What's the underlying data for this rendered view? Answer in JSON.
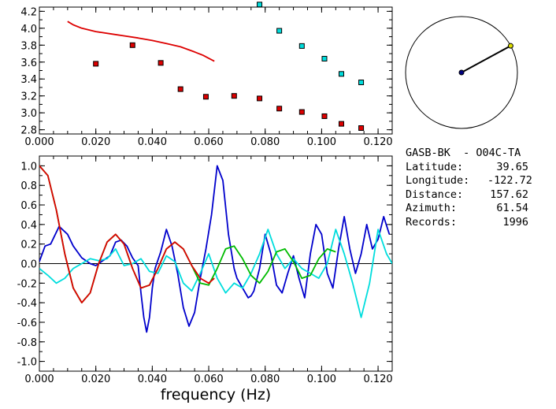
{
  "chart_data": [
    {
      "type": "scatter",
      "xlim": [
        0.0,
        0.125
      ],
      "ylim": [
        2.75,
        4.25
      ],
      "x_ticks": [
        "0.000",
        "0.020",
        "0.040",
        "0.060",
        "0.080",
        "0.100",
        "0.120"
      ],
      "y_ticks": [
        "2.8",
        "3.0",
        "3.2",
        "3.4",
        "3.6",
        "3.8",
        "4.0",
        "4.2"
      ],
      "series": [
        {
          "kind": "line",
          "color": "#dd0000",
          "x": [
            0.01,
            0.012,
            0.015,
            0.02,
            0.025,
            0.03,
            0.035,
            0.04,
            0.045,
            0.05,
            0.055,
            0.058,
            0.06,
            0.062
          ],
          "y": [
            4.08,
            4.04,
            4.0,
            3.96,
            3.935,
            3.91,
            3.885,
            3.855,
            3.82,
            3.78,
            3.72,
            3.68,
            3.645,
            3.61
          ]
        },
        {
          "kind": "markers",
          "color": "#dd0000",
          "x": [
            0.02,
            0.033,
            0.043,
            0.05,
            0.059,
            0.069,
            0.078,
            0.085,
            0.093,
            0.101,
            0.107,
            0.114
          ],
          "y": [
            3.58,
            3.8,
            3.59,
            3.28,
            3.19,
            3.2,
            3.17,
            3.05,
            3.01,
            2.96,
            2.87,
            2.82
          ]
        },
        {
          "kind": "markers",
          "color": "#00dddd",
          "x": [
            0.078,
            0.085,
            0.093,
            0.101,
            0.107,
            0.114
          ],
          "y": [
            4.28,
            3.97,
            3.79,
            3.64,
            3.46,
            3.36
          ]
        }
      ]
    },
    {
      "type": "line",
      "xlabel": "frequency (Hz)",
      "xlim": [
        0.0,
        0.125
      ],
      "ylim": [
        -1.1,
        1.1
      ],
      "x_ticks": [
        "0.000",
        "0.020",
        "0.040",
        "0.060",
        "0.080",
        "0.100",
        "0.120"
      ],
      "y_ticks": [
        "1.0",
        "0.8",
        "0.6",
        "0.4",
        "0.2",
        "0.0",
        "-0.2",
        "-0.4",
        "-0.6",
        "-0.8",
        "-1.0"
      ],
      "zero_line": true,
      "series": [
        {
          "color": "#0000cc",
          "x": [
            0.0,
            0.002,
            0.004,
            0.007,
            0.01,
            0.012,
            0.015,
            0.018,
            0.02,
            0.022,
            0.025,
            0.027,
            0.029,
            0.031,
            0.033,
            0.035,
            0.036,
            0.037,
            0.038,
            0.039,
            0.04,
            0.041,
            0.043,
            0.045,
            0.047,
            0.049,
            0.051,
            0.053,
            0.055,
            0.057,
            0.059,
            0.061,
            0.063,
            0.065,
            0.067,
            0.069,
            0.07,
            0.072,
            0.074,
            0.075,
            0.076,
            0.078,
            0.08,
            0.082,
            0.084,
            0.086,
            0.088,
            0.09,
            0.092,
            0.094,
            0.096,
            0.098,
            0.1,
            0.102,
            0.104,
            0.106,
            0.108,
            0.11,
            0.112,
            0.114,
            0.116,
            0.118,
            0.12,
            0.122,
            0.124
          ],
          "y": [
            0.02,
            0.18,
            0.2,
            0.38,
            0.3,
            0.18,
            0.06,
            0.0,
            -0.02,
            0.02,
            0.08,
            0.22,
            0.24,
            0.18,
            0.06,
            -0.02,
            -0.3,
            -0.55,
            -0.7,
            -0.55,
            -0.25,
            -0.05,
            0.12,
            0.35,
            0.18,
            -0.1,
            -0.45,
            -0.64,
            -0.5,
            -0.15,
            0.15,
            0.5,
            1.0,
            0.85,
            0.3,
            -0.05,
            -0.15,
            -0.25,
            -0.35,
            -0.33,
            -0.28,
            -0.05,
            0.3,
            0.1,
            -0.22,
            -0.3,
            -0.1,
            0.08,
            -0.15,
            -0.35,
            0.1,
            0.4,
            0.3,
            -0.1,
            -0.25,
            0.15,
            0.48,
            0.15,
            -0.1,
            0.1,
            0.4,
            0.15,
            0.25,
            0.48,
            0.3
          ]
        },
        {
          "color": "#00dddd",
          "x": [
            0.0,
            0.003,
            0.006,
            0.009,
            0.012,
            0.015,
            0.018,
            0.021,
            0.024,
            0.027,
            0.03,
            0.033,
            0.036,
            0.039,
            0.042,
            0.045,
            0.048,
            0.051,
            0.054,
            0.057,
            0.06,
            0.063,
            0.066,
            0.069,
            0.072,
            0.075,
            0.078,
            0.081,
            0.084,
            0.087,
            0.09,
            0.093,
            0.096,
            0.099,
            0.102,
            0.105,
            0.108,
            0.111,
            0.114,
            0.117,
            0.12,
            0.123,
            0.125
          ],
          "y": [
            -0.05,
            -0.12,
            -0.2,
            -0.15,
            -0.05,
            0.0,
            0.05,
            0.03,
            0.05,
            0.15,
            -0.02,
            0.0,
            0.05,
            -0.08,
            -0.1,
            0.08,
            0.02,
            -0.2,
            -0.28,
            -0.1,
            0.1,
            -0.15,
            -0.3,
            -0.2,
            -0.25,
            -0.1,
            0.1,
            0.35,
            0.1,
            -0.05,
            0.05,
            -0.05,
            -0.1,
            -0.15,
            0.0,
            0.35,
            0.1,
            -0.2,
            -0.55,
            -0.2,
            0.35,
            0.1,
            0.0
          ]
        },
        {
          "color": "#00bb00",
          "x": [
            0.0,
            0.003,
            0.006,
            0.009,
            0.012,
            0.015,
            0.018,
            0.021,
            0.024,
            0.027,
            0.03,
            0.033,
            0.036,
            0.039,
            0.042,
            0.045,
            0.048,
            0.051,
            0.054,
            0.057,
            0.06,
            0.063,
            0.066,
            0.069,
            0.072,
            0.075,
            0.078,
            0.081,
            0.084,
            0.087,
            0.09,
            0.093,
            0.096,
            0.099,
            0.102,
            0.105
          ],
          "y": [
            1.0,
            0.9,
            0.55,
            0.1,
            -0.25,
            -0.4,
            -0.3,
            0.0,
            0.22,
            0.3,
            0.2,
            -0.05,
            -0.25,
            -0.22,
            -0.05,
            0.15,
            0.22,
            0.15,
            -0.02,
            -0.2,
            -0.22,
            -0.05,
            0.15,
            0.18,
            0.05,
            -0.12,
            -0.2,
            -0.08,
            0.12,
            0.15,
            0.02,
            -0.15,
            -0.12,
            0.05,
            0.15,
            0.12
          ]
        },
        {
          "color": "#dd0000",
          "x": [
            0.0,
            0.003,
            0.006,
            0.009,
            0.012,
            0.015,
            0.018,
            0.021,
            0.024,
            0.027,
            0.03,
            0.033,
            0.036,
            0.039,
            0.042,
            0.045,
            0.048,
            0.051,
            0.054,
            0.057,
            0.06,
            0.062
          ],
          "y": [
            1.0,
            0.9,
            0.55,
            0.1,
            -0.25,
            -0.4,
            -0.3,
            0.0,
            0.22,
            0.3,
            0.2,
            -0.05,
            -0.25,
            -0.22,
            -0.05,
            0.15,
            0.22,
            0.15,
            -0.02,
            -0.15,
            -0.2,
            -0.15
          ]
        }
      ]
    }
  ],
  "azimuth_dial": {
    "azimuth_deg": 61.54,
    "needle_color": "#000000",
    "center_color": "#00007f",
    "tip_color": "#dddd00"
  },
  "info": {
    "station_pair": "GASB-BK  - O04C-TA",
    "rows": [
      {
        "label": "Latitude:",
        "value": "39.65"
      },
      {
        "label": "Longitude:",
        "value": "-122.72"
      },
      {
        "label": "Distance:",
        "value": "157.62"
      },
      {
        "label": "Azimuth:",
        "value": "61.54"
      },
      {
        "label": "Records:",
        "value": "1996"
      }
    ]
  }
}
